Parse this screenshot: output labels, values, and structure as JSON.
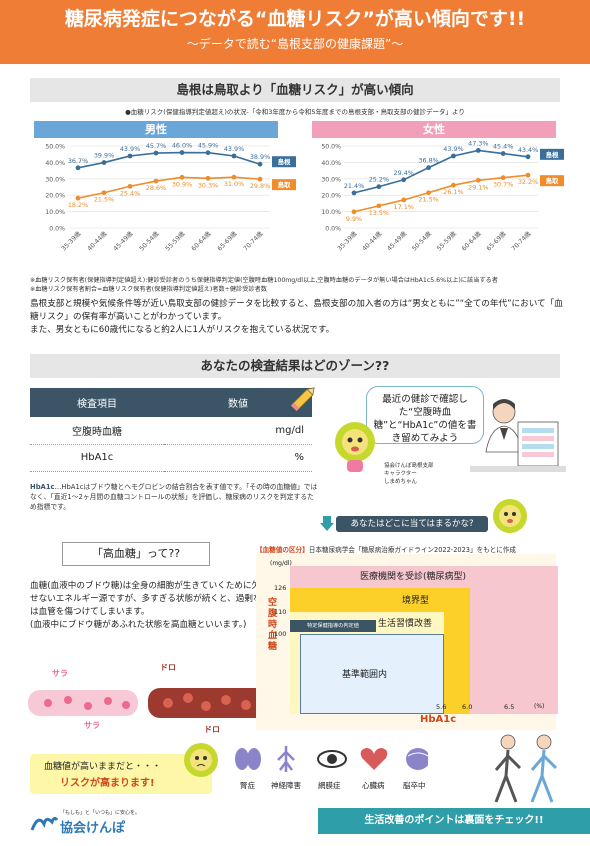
{
  "header": {
    "title": "糖尿病発症につながる“血糖リスク”が高い傾向です!!",
    "subtitle": "～データで読む“島根支部の健康課題”～"
  },
  "section1": {
    "title": "島根は鳥取より「血糖リスク」が高い傾向",
    "caption": "●血糖リスク(保健指導判定値超え)の状況-「令和3年度から令和5年度までの島根支部・鳥取支部の健診データ」より",
    "male_label": "男性",
    "female_label": "女性",
    "note1": "※血糖リスク保有者(保健指導判定値超え):健診受診者のうち保健指導判定値(空腹時血糖100mg/dl以上,空腹時血糖のデータが無い場合はHbA1c5.6%以上)に該当する者",
    "note2": "※血糖リスク保有者割合=血糖リスク保有者(保健指導判定値超え)者数÷健診受診者数",
    "para1": "島根支部と規模や気候条件等が近い鳥取支部の健診データを比較すると、島根支部の加入者の方は“男女ともに”“全ての年代”において「血糖リスク」の保有率が高いことがわかっています。",
    "para2": "また、男女ともに60歳代になると約2人に1人がリスクを抱えている状況です。"
  },
  "chart_data": [
    {
      "type": "line",
      "title": "男性",
      "categories": [
        "35-39歳",
        "40-44歳",
        "45-49歳",
        "50-54歳",
        "55-59歳",
        "60-64歳",
        "65-69歳",
        "70-74歳"
      ],
      "series": [
        {
          "name": "島根",
          "values": [
            36.7,
            39.9,
            43.9,
            45.7,
            46.0,
            45.9,
            43.9,
            38.9
          ],
          "labels": [
            "36.7%",
            "39.9%",
            "43.9%",
            "45.7%",
            "46.0%",
            "45.9%",
            "43.9%",
            "38.9%"
          ]
        },
        {
          "name": "鳥取",
          "values": [
            18.2,
            21.5,
            25.4,
            28.6,
            30.9,
            30.3,
            31.0,
            29.8
          ],
          "labels": [
            "18.2%",
            "21.5%",
            "25.4%",
            "28.6%",
            "30.9%",
            "30.3%",
            "31.0%",
            "29.8%"
          ]
        }
      ],
      "ylim": [
        0,
        50
      ],
      "yticks": [
        "0.0%",
        "10.0%",
        "20.0%",
        "30.0%",
        "40.0%",
        "50.0%"
      ],
      "grid": true
    },
    {
      "type": "line",
      "title": "女性",
      "categories": [
        "35-39歳",
        "40-44歳",
        "45-49歳",
        "50-54歳",
        "55-59歳",
        "60-64歳",
        "65-69歳",
        "70-74歳"
      ],
      "series": [
        {
          "name": "島根",
          "values": [
            21.4,
            25.2,
            29.4,
            36.8,
            43.9,
            47.3,
            45.4,
            43.4
          ],
          "labels": [
            "21.4%",
            "25.2%",
            "29.4%",
            "36.8%",
            "43.9%",
            "47.3%",
            "45.4%",
            "43.4%"
          ]
        },
        {
          "name": "鳥取",
          "values": [
            9.9,
            13.5,
            17.1,
            21.5,
            26.1,
            29.1,
            30.7,
            32.2
          ],
          "labels": [
            "9.9%",
            "13.5%",
            "17.1%",
            "21.5%",
            "26.1%",
            "29.1%",
            "30.7%",
            "32.2%"
          ]
        }
      ],
      "ylim": [
        0,
        50
      ],
      "yticks": [
        "0.0%",
        "10.0%",
        "20.0%",
        "30.0%",
        "40.0%",
        "50.0%"
      ],
      "grid": true
    }
  ],
  "section2": {
    "title": "あなたの検査結果はどのゾーン??",
    "table": {
      "headers": [
        "検査項目",
        "数値"
      ],
      "rows": [
        {
          "item": "空腹時血糖",
          "unit": "mg/dl"
        },
        {
          "item": "HbA1c",
          "unit": "%"
        }
      ]
    },
    "hba1c_term": "HbA1c",
    "hba1c_desc": "…HbA1cはブドウ糖とヘモグロビンの結合割合を表す値です。「その時の血糖値」ではなく、「直近1～2ヶ月間の血糖コントロールの状態」を評価し、糖尿病のリスクを判定するため指標です。",
    "bubble": "最近の健診で確認した“空腹時血糖”と“HbA1c”の値を書き留めてみよう",
    "mascot_caption_1": "協会けんぽ島根支部",
    "mascot_caption_2": "キャラクター",
    "mascot_caption_3": "しまめちゃん",
    "ask": "あなたはどこに当てはまるかな?"
  },
  "section3": {
    "title": "「高血糖」って??",
    "para1": "血糖(血液中のブドウ糖)は全身の細胞が生きていくために欠かせないエネルギー源ですが、多すぎる状態が続くと、過剰な糖は血管を傷つけてしまいます。",
    "para2": "(血液中にブドウ糖があふれた状態を高血糖といいます。)",
    "sara1": "サラ",
    "sara2": "サラ",
    "doro1": "ドロ",
    "doro2": "ドロ"
  },
  "zone": {
    "title_bracket": "【血糖値の区分】",
    "title_rest": "日本糖尿病学会「糖尿病治療ガイドライン2022-2023」をもとに作成",
    "y_unit": "(mg/dl)",
    "y_label": "空腹時血糖",
    "x_label": "HbA1c",
    "x_unit": "(%)",
    "y_ticks": [
      "126",
      "110",
      "100"
    ],
    "x_ticks": [
      "5.6",
      "6.0",
      "6.5"
    ],
    "zones": [
      "医療機関を受診(糖尿病型)",
      "境界型",
      "生活習慣改善",
      "特定保健指導の判定値",
      "基準範囲内"
    ]
  },
  "complications": {
    "lead1": "血糖値が高いままだと・・・",
    "lead2": "リスクが高まります!",
    "items": [
      "腎症",
      "神経障害",
      "網膜症",
      "心臓病",
      "脳卒中"
    ]
  },
  "footer": {
    "logo_tagline": "「もしも」と「いつも」に安心を。",
    "logo_name": "協会けんぽ",
    "cta": "生活改善のポイントは裏面をチェック!!"
  },
  "colors": {
    "accent": "#ef7d35",
    "male": "#6aa7d8",
    "female": "#f2a0b9",
    "shimane_line": "#3a6f9c",
    "tottori_line": "#f08c2a",
    "teal": "#2e9fa8"
  }
}
